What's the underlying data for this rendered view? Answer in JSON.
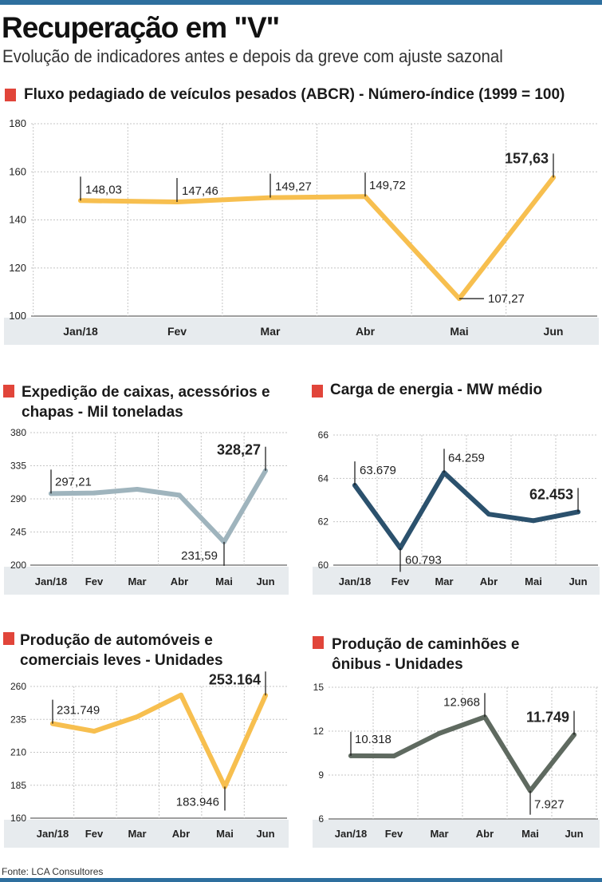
{
  "header": {
    "title": "Recuperação em \"V\"",
    "subtitle": "Evolução de indicadores antes e depois da greve com ajuste sazonal"
  },
  "source": "Fonte: LCA Consultores",
  "colors": {
    "bar": "#2e6f9e",
    "marker": "#e1453a",
    "yellow": "#f7bf4f",
    "gray_blue": "#9fb4bd",
    "navy": "#2b516d",
    "dark_gray": "#5f6a60",
    "band": "#e7ebee",
    "grid": "#c5c5c5"
  },
  "chart_data": [
    {
      "id": "fluxo",
      "type": "line",
      "title": "Fluxo pedagiado de veículos pesados (ABCR) - Número-índice (1999 = 100)",
      "categories": [
        "Jan/18",
        "Fev",
        "Mar",
        "Abr",
        "Mai",
        "Jun"
      ],
      "values": [
        148.03,
        147.46,
        149.27,
        149.72,
        107.27,
        157.63
      ],
      "labels": [
        "148,03",
        "147,46",
        "149,27",
        "149,72",
        "107,27",
        "157,63"
      ],
      "yticks": [
        "100",
        "120",
        "140",
        "160",
        "180"
      ],
      "ylim": [
        100,
        180
      ],
      "color": "yellow"
    },
    {
      "id": "caixas",
      "type": "line",
      "title": "Expedição de caixas, acessórios e chapas - Mil toneladas",
      "categories": [
        "Jan/18",
        "Fev",
        "Mar",
        "Abr",
        "Mai",
        "Jun"
      ],
      "values": [
        297.21,
        298,
        303,
        295,
        231.59,
        328.27
      ],
      "labels": [
        "297,21",
        "",
        "",
        "",
        "231,59",
        "328,27"
      ],
      "yticks": [
        "200",
        "245",
        "290",
        "335",
        "380"
      ],
      "ylim": [
        200,
        380
      ],
      "color": "gray_blue"
    },
    {
      "id": "energia",
      "type": "line",
      "title": "Carga de energia - MW médio",
      "categories": [
        "Jan/18",
        "Fev",
        "Mar",
        "Abr",
        "Mai",
        "Jun"
      ],
      "values": [
        63.679,
        60.793,
        64.259,
        62.35,
        62.05,
        62.453
      ],
      "labels": [
        "63.679",
        "60.793",
        "64.259",
        "",
        "",
        "62.453"
      ],
      "yticks": [
        "60",
        "62",
        "64",
        "66"
      ],
      "ylim": [
        60,
        66
      ],
      "color": "navy"
    },
    {
      "id": "automoveis",
      "type": "line",
      "title": "Produção de automóveis e comerciais leves - Unidades",
      "categories": [
        "Jan/18",
        "Fev",
        "Mar",
        "Abr",
        "Mai",
        "Jun"
      ],
      "values": [
        231.749,
        226,
        237,
        253.5,
        183.946,
        253.164
      ],
      "labels": [
        "231.749",
        "",
        "",
        "",
        "183.946",
        "253.164"
      ],
      "yticks": [
        "160",
        "185",
        "210",
        "235",
        "260"
      ],
      "ylim": [
        160,
        260
      ],
      "color": "yellow"
    },
    {
      "id": "caminhoes",
      "type": "line",
      "title": "Produção de caminhões e ônibus - Unidades",
      "categories": [
        "Jan/18",
        "Fev",
        "Mar",
        "Abr",
        "Mai",
        "Jun"
      ],
      "values": [
        10.318,
        10.3,
        11.85,
        12.968,
        7.927,
        11.749
      ],
      "labels": [
        "10.318",
        "",
        "",
        "12.968",
        "7.927",
        "11.749"
      ],
      "yticks": [
        "6",
        "9",
        "12",
        "15"
      ],
      "ylim": [
        6,
        15
      ],
      "color": "dark_gray"
    }
  ]
}
